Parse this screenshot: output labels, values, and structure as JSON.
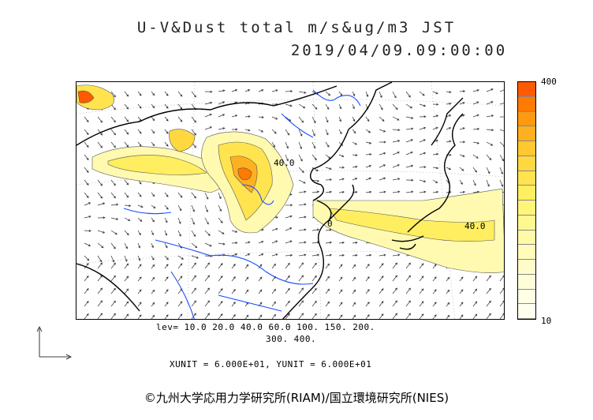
{
  "title": {
    "line1": "U-V&Dust total m/s&ug/m3 JST",
    "line2": "2019/04/09.09:00:00"
  },
  "colorbar": {
    "max_label": "400",
    "min_label": "10",
    "colors": [
      "#ff5a00",
      "#ff7a00",
      "#ff9a10",
      "#ffb020",
      "#ffc830",
      "#ffd840",
      "#ffe450",
      "#ffee60",
      "#fff57a",
      "#fff890",
      "#fffaa8",
      "#fffbbb",
      "#fffcca",
      "#fffdd8",
      "#fffee6",
      "#ffffee"
    ]
  },
  "contour_labels": [
    "40.0",
    "40.0",
    "0"
  ],
  "legend": {
    "levels_line1": "lev= 10.0 20.0 40.0 60.0 100. 150. 200.",
    "levels_line2": "300. 400.",
    "units": "XUNIT = 6.000E+01, YUNIT = 6.000E+01"
  },
  "copyright": "©九州大学応用力学研究所(RIAM)/国立環境研究所(NIES)",
  "colors": {
    "coast": "#000000",
    "rivers": "#1a4dff",
    "dust_low": "#fffab0",
    "dust_mid": "#ffd840",
    "dust_high": "#ff5a00"
  }
}
